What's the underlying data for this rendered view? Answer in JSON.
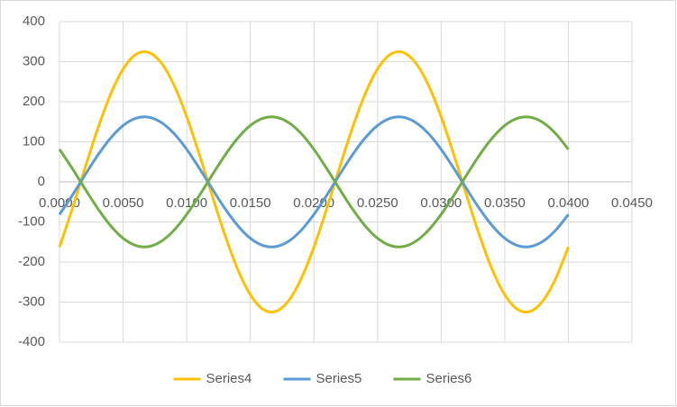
{
  "chart_data": {
    "type": "line",
    "x": [
      0,
      0.001,
      0.002,
      0.003,
      0.004,
      0.005,
      0.006,
      0.007,
      0.008,
      0.009,
      0.01,
      0.011,
      0.012,
      0.013,
      0.014,
      0.015,
      0.016,
      0.017,
      0.018,
      0.019,
      0.02,
      0.021,
      0.022,
      0.023,
      0.024,
      0.025,
      0.026,
      0.027,
      0.028,
      0.029,
      0.03,
      0.031,
      0.032,
      0.033,
      0.034,
      0.035,
      0.036,
      0.037,
      0.038,
      0.039,
      0.04
    ],
    "series": [
      {
        "name": "Series4",
        "color": "#FFC000",
        "values": [
          -162.5,
          -67.6,
          34.0,
          132.2,
          217.5,
          281.5,
          317.9,
          323.2,
          296.9,
          241.5,
          162.5,
          67.6,
          -34.0,
          -132.2,
          -217.5,
          -281.5,
          -317.9,
          -323.2,
          -296.9,
          -241.5,
          -162.5,
          -67.6,
          34.0,
          132.2,
          217.5,
          281.5,
          317.9,
          323.2,
          296.9,
          241.5,
          162.5,
          67.6,
          -34.0,
          -132.2,
          -217.5,
          -281.5,
          -317.9,
          -323.2,
          -296.9,
          -241.5,
          -162.5
        ]
      },
      {
        "name": "Series5",
        "color": "#5B9BD5",
        "values": [
          -81.3,
          -33.8,
          17.0,
          66.1,
          108.7,
          140.7,
          158.9,
          161.6,
          148.4,
          120.8,
          81.3,
          33.8,
          -17.0,
          -66.1,
          -108.7,
          -140.7,
          -158.9,
          -161.6,
          -148.4,
          -120.8,
          -81.3,
          -33.8,
          17.0,
          66.1,
          108.7,
          140.7,
          158.9,
          161.6,
          148.4,
          120.8,
          81.3,
          33.8,
          -17.0,
          -66.1,
          -108.7,
          -140.7,
          -158.9,
          -161.6,
          -148.4,
          -120.8,
          -81.3
        ]
      },
      {
        "name": "Series6",
        "color": "#70AD47",
        "values": [
          81.3,
          33.8,
          -17.0,
          -66.1,
          -108.7,
          -140.7,
          -158.9,
          -161.6,
          -148.4,
          -120.8,
          -81.3,
          -33.8,
          17.0,
          66.1,
          108.7,
          140.7,
          158.9,
          161.6,
          148.4,
          120.8,
          81.3,
          33.8,
          -17.0,
          -66.1,
          -108.7,
          -140.7,
          -158.9,
          -161.6,
          -148.4,
          -120.8,
          -81.3,
          -33.8,
          17.0,
          66.1,
          108.7,
          140.7,
          158.9,
          161.6,
          148.4,
          120.8,
          81.3
        ]
      }
    ],
    "xlim": [
      0,
      0.045
    ],
    "xticks": [
      {
        "value": 0,
        "label": "0.0000"
      },
      {
        "value": 0.005,
        "label": "0.0050"
      },
      {
        "value": 0.01,
        "label": "0.0100"
      },
      {
        "value": 0.015,
        "label": "0.0150"
      },
      {
        "value": 0.02,
        "label": "0.0200"
      },
      {
        "value": 0.025,
        "label": "0.0250"
      },
      {
        "value": 0.03,
        "label": "0.0300"
      },
      {
        "value": 0.035,
        "label": "0.0350"
      },
      {
        "value": 0.04,
        "label": "0.0400"
      },
      {
        "value": 0.045,
        "label": "0.0450"
      }
    ],
    "ylim": [
      -400,
      400
    ],
    "yticks": [
      -400,
      -300,
      -200,
      -100,
      0,
      100,
      200,
      300,
      400
    ],
    "grid": true,
    "legend": "bottom"
  }
}
